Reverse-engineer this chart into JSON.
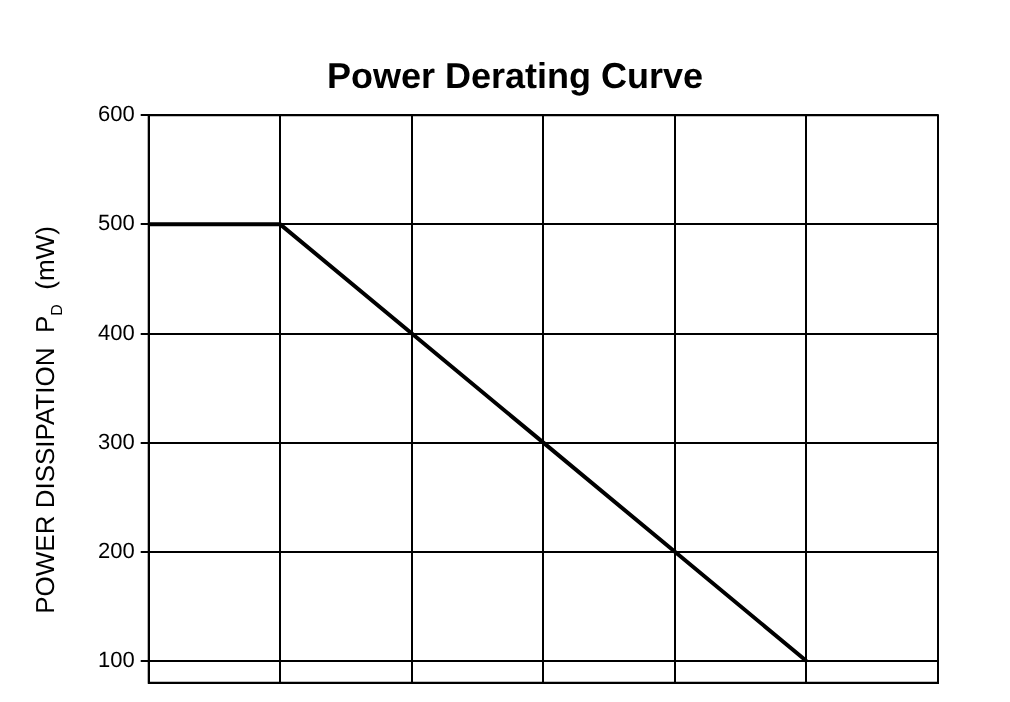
{
  "chart_data": {
    "type": "line",
    "title": "Power Derating Curve",
    "ylabel": "POWER DISSIPATION  P$_{D}$  (mW)",
    "categories": [
      null,
      null,
      null,
      null,
      null,
      null,
      null
    ],
    "series": [
      {
        "color": "#000000",
        "values": [
          500,
          500,
          400,
          300,
          200,
          100,
          null
        ]
      }
    ],
    "ylim": [
      80,
      600
    ],
    "yticks": [
      100,
      200,
      300,
      400,
      500,
      600
    ],
    "grid": true,
    "legend": false,
    "marker": "none",
    "line_style": "solid",
    "tick_labels": "y"
  }
}
